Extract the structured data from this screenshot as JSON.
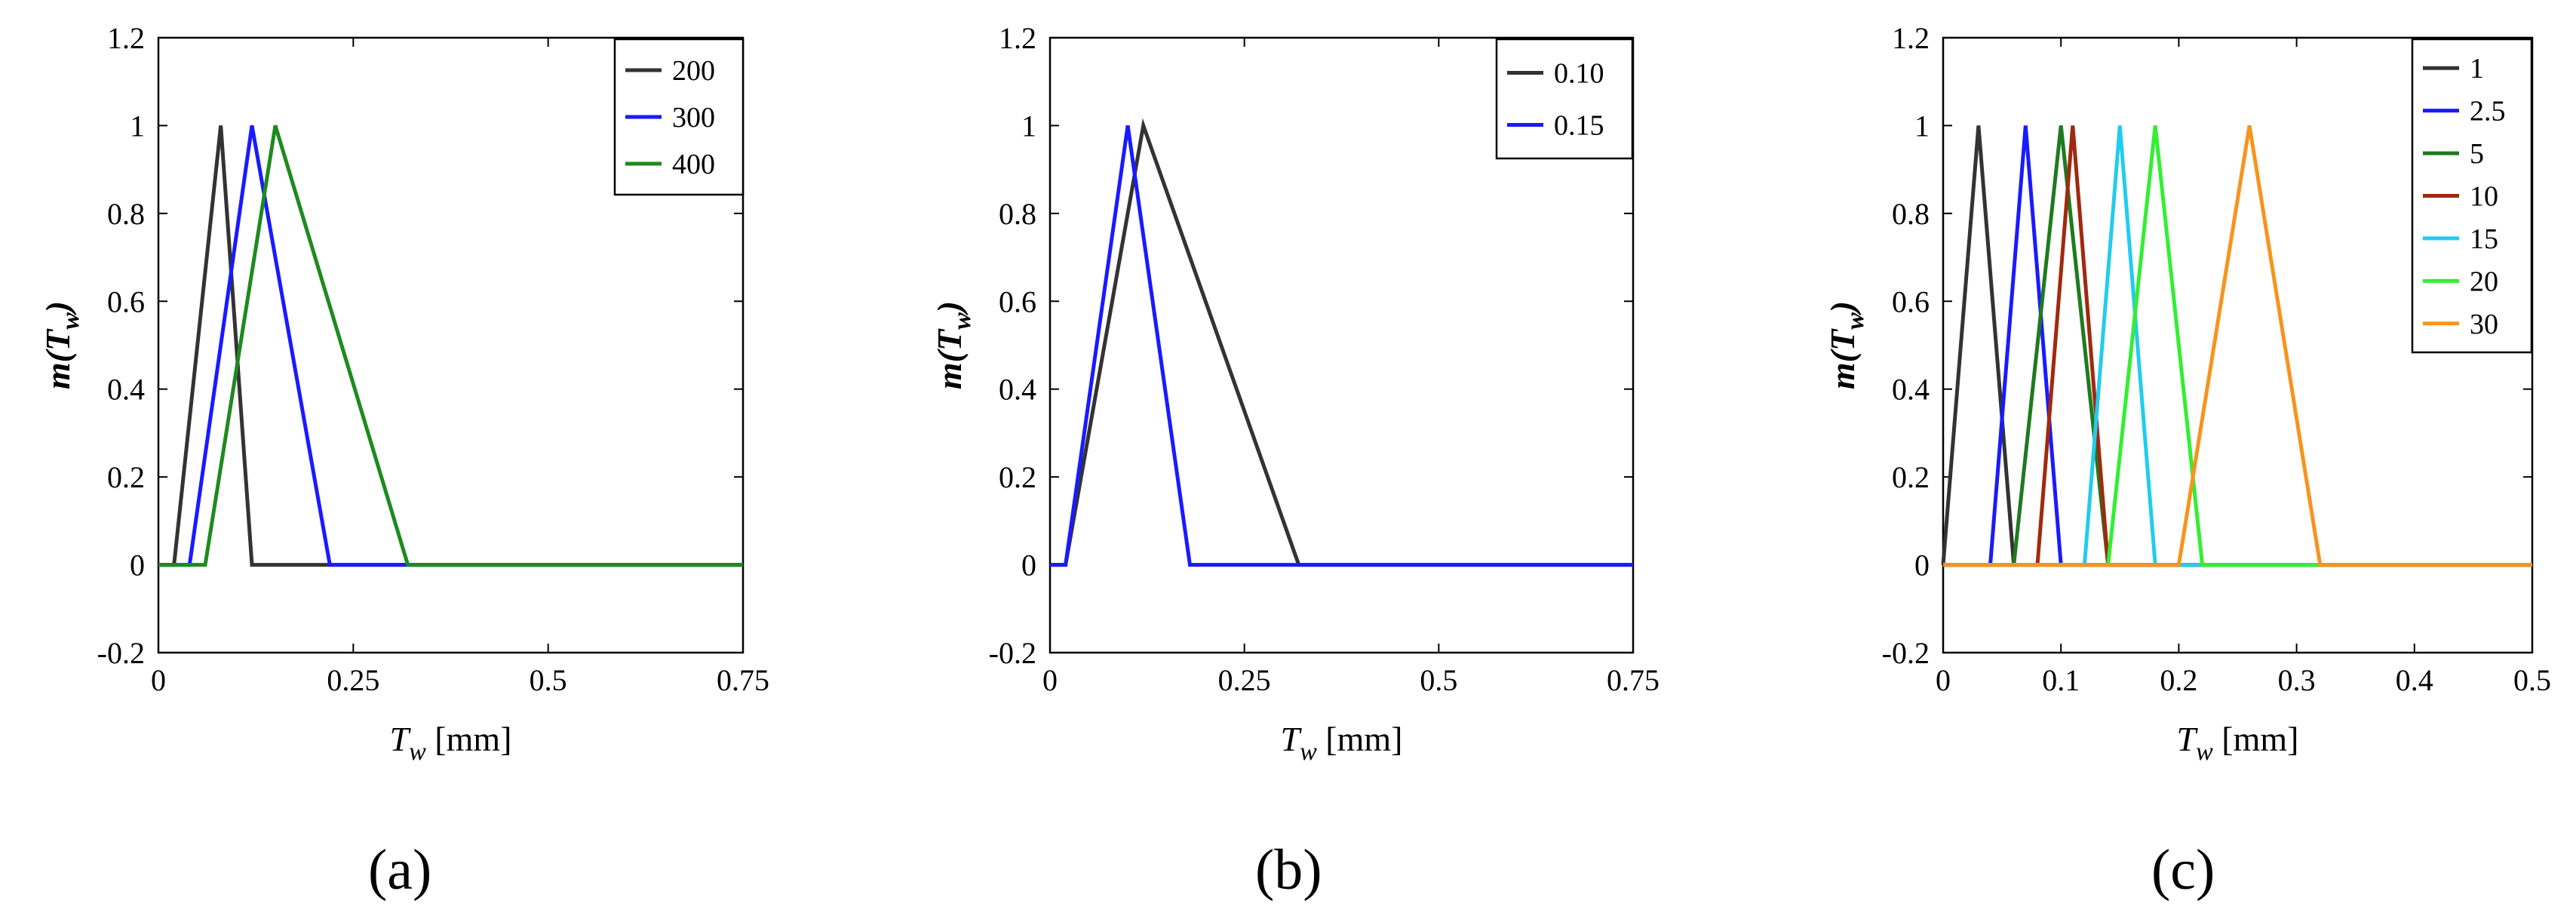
{
  "chart_data": [
    {
      "type": "line",
      "panel_label": "(a)",
      "title": "",
      "xlabel_main": "T",
      "xlabel_sub": "w",
      "xlabel_unit": " [mm]",
      "ylabel_pre": "m(",
      "ylabel_main": "T",
      "ylabel_sub": "w",
      "ylabel_post": ")",
      "xlim": [
        0,
        0.75
      ],
      "ylim": [
        -0.2,
        1.2
      ],
      "xticks": [
        0,
        0.25,
        0.5,
        0.75
      ],
      "xtick_labels": [
        "0",
        "0.25",
        "0.5",
        "0.75"
      ],
      "yticks": [
        -0.2,
        0,
        0.2,
        0.4,
        0.6,
        0.8,
        1,
        1.2
      ],
      "ytick_labels": [
        "-0.2",
        "0",
        "0.2",
        "0.4",
        "0.6",
        "0.8",
        "1",
        "1.2"
      ],
      "grid": false,
      "legend_position": "top-right",
      "series": [
        {
          "name": "200",
          "color": "#333333",
          "x": [
            0,
            0.02,
            0.08,
            0.12,
            0.75
          ],
          "y": [
            0,
            0,
            1,
            0,
            0
          ]
        },
        {
          "name": "300",
          "color": "#1a1aff",
          "x": [
            0,
            0.04,
            0.12,
            0.22,
            0.75
          ],
          "y": [
            0,
            0,
            1,
            0,
            0
          ]
        },
        {
          "name": "400",
          "color": "#1f8a1f",
          "x": [
            0,
            0.06,
            0.15,
            0.32,
            0.75
          ],
          "y": [
            0,
            0,
            1,
            0,
            0
          ]
        }
      ]
    },
    {
      "type": "line",
      "panel_label": "(b)",
      "title": "",
      "xlabel_main": "T",
      "xlabel_sub": "w",
      "xlabel_unit": " [mm]",
      "ylabel_pre": "m(",
      "ylabel_main": "T",
      "ylabel_sub": "w",
      "ylabel_post": ")",
      "xlim": [
        0,
        0.75
      ],
      "ylim": [
        -0.2,
        1.2
      ],
      "xticks": [
        0,
        0.25,
        0.5,
        0.75
      ],
      "xtick_labels": [
        "0",
        "0.25",
        "0.5",
        "0.75"
      ],
      "yticks": [
        -0.2,
        0,
        0.2,
        0.4,
        0.6,
        0.8,
        1,
        1.2
      ],
      "ytick_labels": [
        "-0.2",
        "0",
        "0.2",
        "0.4",
        "0.6",
        "0.8",
        "1",
        "1.2"
      ],
      "grid": false,
      "legend_position": "top-right",
      "series": [
        {
          "name": "0.10",
          "color": "#333333",
          "x": [
            0,
            0.02,
            0.12,
            0.32,
            0.75
          ],
          "y": [
            0,
            0,
            1,
            0,
            0
          ]
        },
        {
          "name": "0.15",
          "color": "#1a1aff",
          "x": [
            0,
            0.02,
            0.1,
            0.18,
            0.75
          ],
          "y": [
            0,
            0,
            1,
            0,
            0
          ]
        }
      ]
    },
    {
      "type": "line",
      "panel_label": "(c)",
      "title": "",
      "xlabel_main": "T",
      "xlabel_sub": "w",
      "xlabel_unit": " [mm]",
      "ylabel_pre": "m(",
      "ylabel_main": "T",
      "ylabel_sub": "w",
      "ylabel_post": ")",
      "xlim": [
        0,
        0.5
      ],
      "ylim": [
        -0.2,
        1.2
      ],
      "xticks": [
        0,
        0.1,
        0.2,
        0.3,
        0.4,
        0.5
      ],
      "xtick_labels": [
        "0",
        "0.1",
        "0.2",
        "0.3",
        "0.4",
        "0.5"
      ],
      "yticks": [
        -0.2,
        0,
        0.2,
        0.4,
        0.6,
        0.8,
        1,
        1.2
      ],
      "ytick_labels": [
        "-0.2",
        "0",
        "0.2",
        "0.4",
        "0.6",
        "0.8",
        "1",
        "1.2"
      ],
      "grid": false,
      "legend_position": "top-right",
      "series": [
        {
          "name": "1",
          "color": "#333333",
          "x": [
            0,
            0.03,
            0.06,
            0.5
          ],
          "y": [
            0,
            1,
            0,
            0
          ]
        },
        {
          "name": "2.5",
          "color": "#1a1aff",
          "x": [
            0,
            0.04,
            0.07,
            0.1,
            0.5
          ],
          "y": [
            0,
            0,
            1,
            0,
            0
          ]
        },
        {
          "name": "5",
          "color": "#1f7a1f",
          "x": [
            0,
            0.06,
            0.1,
            0.14,
            0.5
          ],
          "y": [
            0,
            0,
            1,
            0,
            0
          ]
        },
        {
          "name": "10",
          "color": "#a0290f",
          "x": [
            0,
            0.08,
            0.11,
            0.14,
            0.5
          ],
          "y": [
            0,
            0,
            1,
            0,
            0
          ]
        },
        {
          "name": "15",
          "color": "#22ccee",
          "x": [
            0,
            0.12,
            0.15,
            0.18,
            0.5
          ],
          "y": [
            0,
            0,
            1,
            0,
            0
          ]
        },
        {
          "name": "20",
          "color": "#33ee33",
          "x": [
            0,
            0.14,
            0.18,
            0.22,
            0.5
          ],
          "y": [
            0,
            0,
            1,
            0,
            0
          ]
        },
        {
          "name": "30",
          "color": "#f7941d",
          "x": [
            0,
            0.2,
            0.26,
            0.32,
            0.5
          ],
          "y": [
            0,
            0,
            1,
            0,
            0
          ]
        }
      ]
    }
  ]
}
